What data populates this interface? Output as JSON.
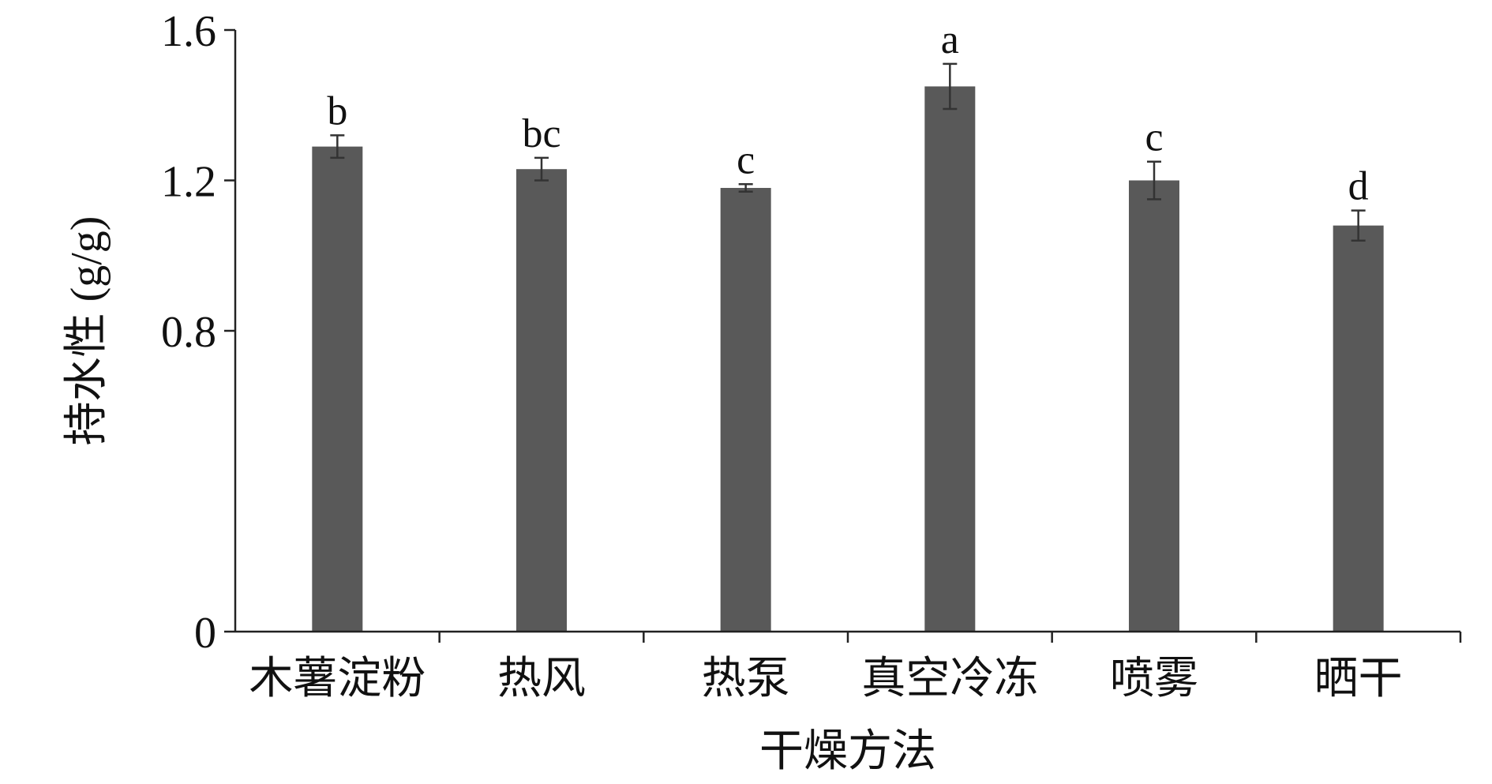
{
  "chart_data": {
    "type": "bar",
    "xlabel": "干燥方法",
    "ylabel": "持水性 (g/g)",
    "ylim": [
      0,
      1.6
    ],
    "yticks": [
      {
        "value": 0,
        "label": "0"
      },
      {
        "value": 0.8,
        "label": "0.8"
      },
      {
        "value": 1.2,
        "label": "1.2"
      },
      {
        "value": 1.6,
        "label": "1.6"
      }
    ],
    "categories": [
      "木薯淀粉",
      "热风",
      "热泵",
      "真空冷冻",
      "喷雾",
      "晒干"
    ],
    "values": [
      1.29,
      1.23,
      1.18,
      1.45,
      1.2,
      1.08
    ],
    "errors": [
      0.03,
      0.03,
      0.01,
      0.06,
      0.05,
      0.04
    ],
    "significance": [
      "b",
      "bc",
      "c",
      "a",
      "c",
      "d"
    ],
    "grid": false,
    "bar_color": "#595959"
  }
}
